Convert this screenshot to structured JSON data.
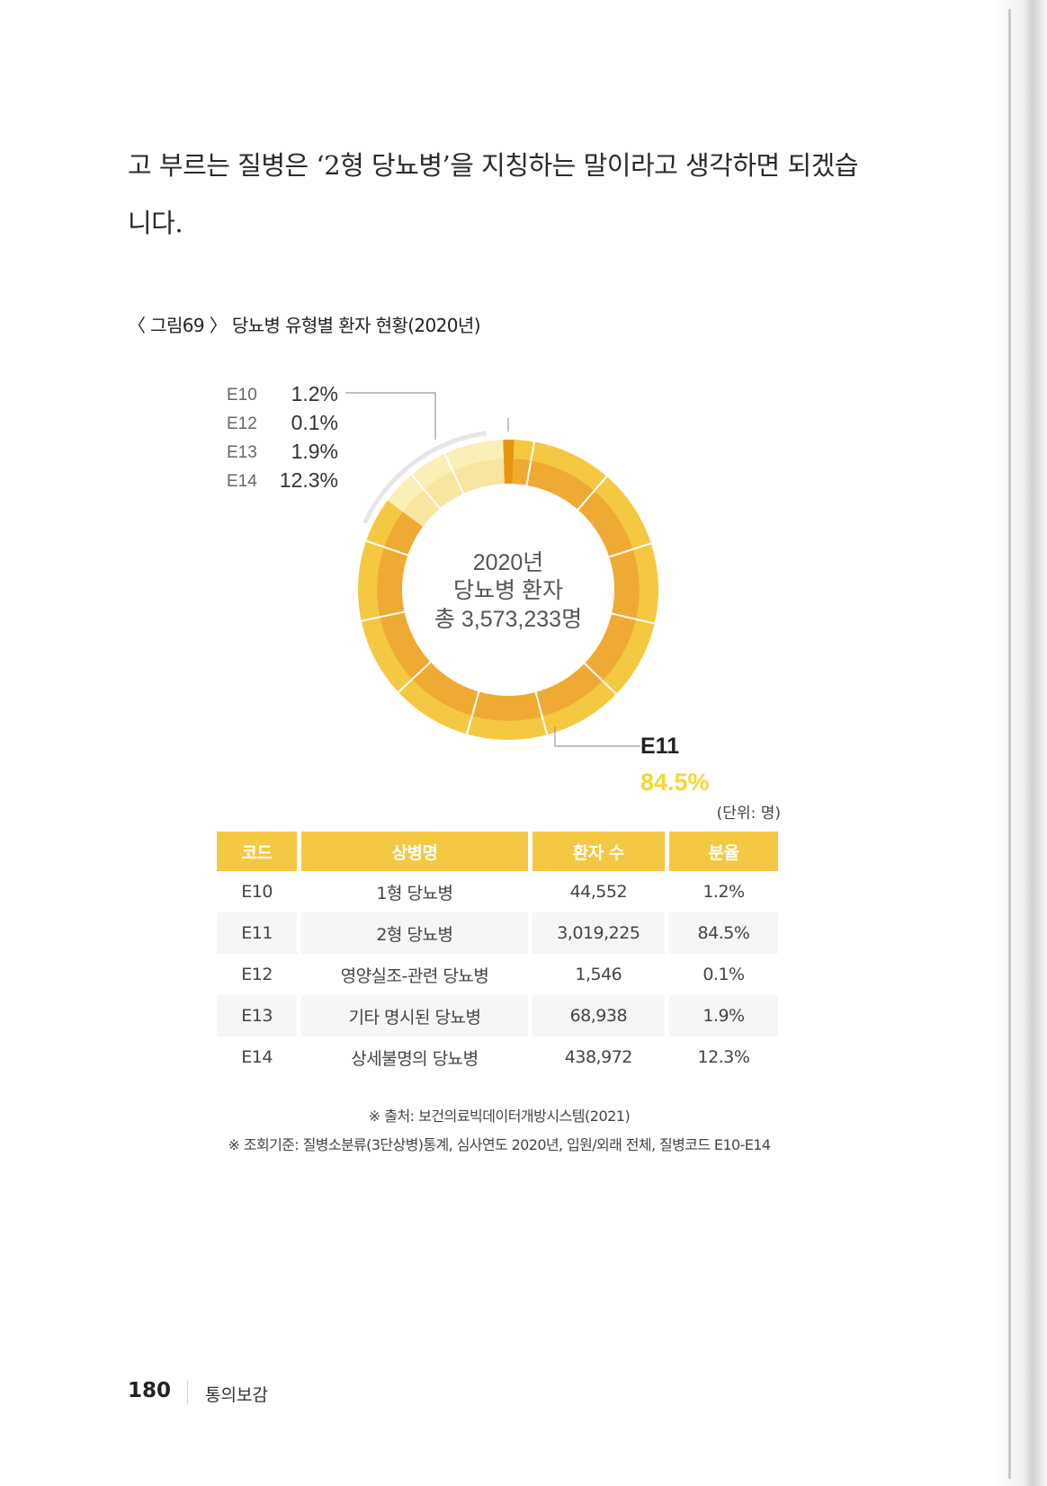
{
  "body_text": {
    "line1": "고 부르는 질병은 ‘2형 당뇨병’을 지칭하는 말이라고 생각하면 되겠습",
    "line2": "니다."
  },
  "figure": {
    "title": "〈 그림69 〉 당뇨병 유형별 환자 현황(2020년)",
    "center": {
      "line1": "2020년",
      "line2": "당뇨병 환자",
      "line3": "총 3,573,233명"
    }
  },
  "chart_data": {
    "type": "pie",
    "style": "donut",
    "categories": [
      "E10",
      "E11",
      "E12",
      "E13",
      "E14"
    ],
    "values": [
      1.2,
      84.5,
      0.1,
      1.9,
      12.3
    ],
    "value_labels": [
      "1.2%",
      "84.5%",
      "0.1%",
      "1.9%",
      "12.3%"
    ],
    "legend": [
      {
        "code": "E10",
        "pct": "1.2%"
      },
      {
        "code": "E12",
        "pct": "0.1%"
      },
      {
        "code": "E13",
        "pct": "1.9%"
      },
      {
        "code": "E14",
        "pct": "12.3%"
      }
    ],
    "highlight": {
      "code": "E11",
      "pct": "84.5%"
    },
    "colors": {
      "E11_outer": "#f5c842",
      "E11_inner": "#efaa33",
      "E10": "#e7950f",
      "small_outer": "#fbefb8",
      "small_inner": "#f7e5a0",
      "highlight_text": "#f5d635"
    }
  },
  "table": {
    "unit": "(단위: 명)",
    "headers": [
      "코드",
      "상병명",
      "환자 수",
      "분율"
    ],
    "rows": [
      [
        "E10",
        "1형 당뇨병",
        "44,552",
        "1.2%"
      ],
      [
        "E11",
        "2형 당뇨병",
        "3,019,225",
        "84.5%"
      ],
      [
        "E12",
        "영양실조-관련 당뇨병",
        "1,546",
        "0.1%"
      ],
      [
        "E13",
        "기타 명시된 당뇨병",
        "68,938",
        "1.9%"
      ],
      [
        "E14",
        "상세불명의 당뇨병",
        "438,972",
        "12.3%"
      ]
    ]
  },
  "notes": {
    "source": "※ 출처: 보건의료빅데이터개방시스템(2021)",
    "criteria": "※ 조회기준: 질병소분류(3단상병)통계, 심사연도 2020년, 입원/외래 전체, 질병코드 E10-E14"
  },
  "footer": {
    "page": "180",
    "book": "통의보감"
  }
}
